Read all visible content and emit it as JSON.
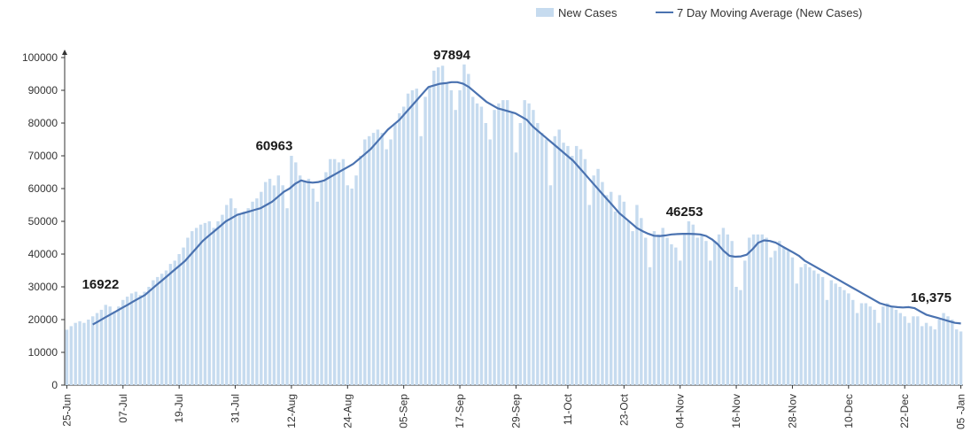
{
  "chart_data": {
    "type": "bar",
    "title": "",
    "xlabel": "",
    "ylabel": "",
    "ylim": [
      0,
      100000
    ],
    "y_ticks": [
      0,
      10000,
      20000,
      30000,
      40000,
      50000,
      60000,
      70000,
      80000,
      90000,
      100000
    ],
    "x_ticks": [
      "25-Jun",
      "07-Jul",
      "19-Jul",
      "31-Jul",
      "12-Aug",
      "24-Aug",
      "05-Sep",
      "17-Sep",
      "29-Sep",
      "11-Oct",
      "23-Oct",
      "04-Nov",
      "16-Nov",
      "28-Nov",
      "10-Dec",
      "22-Dec",
      "05 -Jan"
    ],
    "grid": false,
    "legend_position": "top-right",
    "series": [
      {
        "name": "New Cases",
        "kind": "bar",
        "color": "#c6dbef",
        "values": [
          16922,
          18000,
          19000,
          19500,
          19000,
          20000,
          21000,
          22000,
          23000,
          24500,
          24000,
          22500,
          24000,
          26000,
          27000,
          28000,
          28500,
          27500,
          28500,
          30000,
          32000,
          33000,
          34000,
          35000,
          37000,
          38000,
          40000,
          42000,
          45000,
          47000,
          48000,
          49000,
          49500,
          50000,
          48000,
          50000,
          52000,
          55000,
          57000,
          54000,
          52000,
          53000,
          54000,
          56000,
          57000,
          59000,
          62000,
          63000,
          60963,
          64000,
          61000,
          54000,
          70000,
          68000,
          64000,
          62000,
          63000,
          60000,
          56000,
          62000,
          65000,
          69000,
          69000,
          68000,
          69000,
          61000,
          60000,
          64000,
          70000,
          75000,
          76000,
          77000,
          78000,
          77000,
          72000,
          75000,
          80000,
          83000,
          85000,
          89000,
          90000,
          90500,
          76000,
          88000,
          91000,
          96000,
          97000,
          97500,
          92000,
          90000,
          84000,
          90000,
          97894,
          95000,
          88000,
          86000,
          85000,
          80000,
          75000,
          84000,
          86000,
          87000,
          87000,
          83000,
          71000,
          80000,
          87000,
          86000,
          84000,
          80000,
          77000,
          75000,
          61000,
          76000,
          78000,
          74000,
          73000,
          70000,
          73000,
          72000,
          69000,
          55000,
          64000,
          66000,
          62000,
          58000,
          59000,
          53000,
          58000,
          56000,
          50000,
          47000,
          55000,
          51000,
          45000,
          36000,
          47000,
          46000,
          48000,
          45000,
          43000,
          42000,
          38000,
          46253,
          50000,
          49000,
          45000,
          46000,
          44000,
          38000,
          44000,
          46000,
          48000,
          46000,
          44000,
          30000,
          29000,
          38000,
          45000,
          46000,
          46000,
          46000,
          45000,
          39000,
          41000,
          44000,
          42000,
          41000,
          39000,
          31000,
          36000,
          37000,
          36000,
          35000,
          34000,
          33000,
          26000,
          32000,
          31000,
          30000,
          29000,
          28000,
          26000,
          22000,
          25000,
          25000,
          24000,
          23000,
          19000,
          24000,
          25000,
          24000,
          23000,
          22000,
          21000,
          19000,
          21000,
          21000,
          18000,
          19000,
          18000,
          17000,
          20000,
          22000,
          21000,
          20000,
          17000,
          16375
        ]
      },
      {
        "name": "7 Day Moving Average (New Cases)",
        "kind": "line",
        "color": "#4a72b0",
        "values": [
          18500,
          19500,
          20500,
          21500,
          22500,
          23500,
          24500,
          25500,
          26500,
          27500,
          29000,
          30500,
          32000,
          33500,
          35000,
          36500,
          38000,
          40000,
          42000,
          44000,
          45500,
          47000,
          48500,
          50000,
          51000,
          52000,
          52500,
          53000,
          53500,
          54000,
          55000,
          56000,
          57500,
          59000,
          60000,
          61500,
          62500,
          62000,
          61800,
          62000,
          62500,
          63500,
          64500,
          65500,
          66500,
          67500,
          69000,
          70500,
          72000,
          74000,
          76000,
          78000,
          79500,
          81000,
          83000,
          85000,
          87000,
          89000,
          91000,
          91500,
          92000,
          92200,
          92500,
          92500,
          92000,
          91000,
          89500,
          88000,
          86500,
          85500,
          84500,
          84000,
          83500,
          83000,
          82000,
          81000,
          79000,
          77500,
          76000,
          74500,
          73000,
          71500,
          70000,
          68500,
          66500,
          64500,
          62500,
          60500,
          58500,
          56500,
          54500,
          52500,
          51000,
          49500,
          48000,
          47000,
          46200,
          45600,
          45500,
          45700,
          46000,
          46100,
          46200,
          46200,
          46100,
          46000,
          45500,
          44500,
          43000,
          41000,
          39500,
          39200,
          39300,
          39800,
          41500,
          43500,
          44200,
          44000,
          43500,
          42500,
          41500,
          40500,
          39500,
          38000,
          37000,
          36000,
          35000,
          34000,
          33000,
          32000,
          31000,
          30000,
          29000,
          28000,
          27000,
          26000,
          25000,
          24500,
          24000,
          23800,
          23700,
          23800,
          23500,
          22500,
          21500,
          21000,
          20500,
          20000,
          19500,
          19000,
          18800
        ]
      }
    ],
    "annotations": [
      {
        "text": "16922",
        "value": 16922,
        "x_index": 0
      },
      {
        "text": "60963",
        "value": 60963,
        "x_index": 48
      },
      {
        "text": "97894",
        "value": 97894,
        "x_index": 92
      },
      {
        "text": "46253",
        "value": 46253,
        "x_index": 143
      },
      {
        "text": "16,375",
        "value": 16375,
        "x_index": 205
      }
    ]
  }
}
